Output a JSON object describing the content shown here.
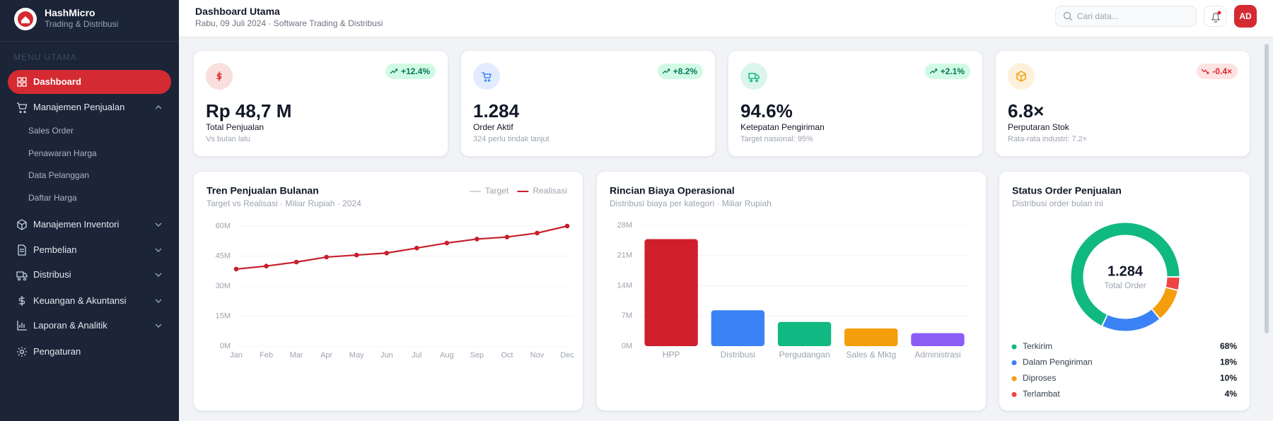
{
  "sidebar": {
    "brand": "HashMicro",
    "tagline": "Trading & Distribusi",
    "section": "MENU UTAMA",
    "menu": [
      {
        "label": "Dashboard",
        "active": true
      },
      {
        "label": "Manajemen Penjualan",
        "expanded": true,
        "children": [
          "Sales Order",
          "Penawaran Harga",
          "Data Pelanggan",
          "Daftar Harga"
        ]
      },
      {
        "label": "Manajemen Inventori",
        "expanded": false
      },
      {
        "label": "Pembelian",
        "expanded": false
      },
      {
        "label": "Distribusi",
        "expanded": false
      },
      {
        "label": "Keuangan & Akuntansi",
        "expanded": false
      },
      {
        "label": "Laporan & Analitik",
        "expanded": false
      },
      {
        "label": "Pengaturan"
      }
    ]
  },
  "header": {
    "title": "Dashboard Utama",
    "subtitle": "Rabu, 09 Juli 2024 · Software Trading & Distribusi",
    "search_placeholder": "Cari data...",
    "avatar": "AD"
  },
  "kpis": [
    {
      "value": "Rp 48,7 M",
      "label": "Total Penjualan",
      "note": "Vs bulan lalu",
      "change": "+12.4%",
      "trend": "up",
      "color": "#dc2626"
    },
    {
      "value": "1.284",
      "label": "Order Aktif",
      "note": "324 perlu tindak lanjut",
      "change": "+8.2%",
      "trend": "up",
      "color": "#3b82f6"
    },
    {
      "value": "94.6%",
      "label": "Ketepatan Pengiriman",
      "note": "Target nasional: 95%",
      "change": "+2.1%",
      "trend": "up",
      "color": "#10b981"
    },
    {
      "value": "6.8×",
      "label": "Perputaran Stok",
      "note": "Rata-rata industri: 7.2×",
      "change": "-0.4×",
      "trend": "down",
      "color": "#f59e0b"
    }
  ],
  "charts": [
    {
      "type": "line",
      "title": "Tren Penjualan Bulanan",
      "subtitle": "Target vs Realisasi · Miliar Rupiah · 2024",
      "categories": [
        "Jan",
        "Feb",
        "Mar",
        "Apr",
        "May",
        "Jun",
        "Jul",
        "Aug",
        "Sep",
        "Oct",
        "Nov",
        "Dec"
      ],
      "series": [
        {
          "name": "Target",
          "color": "#d1d5db",
          "values": [
            null,
            null,
            null,
            null,
            null,
            null,
            null,
            null,
            null,
            null,
            null,
            null
          ]
        },
        {
          "name": "Realisasi",
          "color": "#c81e2b",
          "values": [
            38.5,
            40,
            42,
            44.5,
            45.5,
            46.5,
            49,
            51.5,
            53.5,
            54.5,
            56.5,
            60
          ]
        }
      ],
      "ylim": [
        0,
        60
      ],
      "yticks": [
        {
          "value": 0,
          "label": "0M"
        },
        {
          "value": 15,
          "label": "15M"
        },
        {
          "value": 30,
          "label": "30M"
        },
        {
          "value": 45,
          "label": "45M"
        },
        {
          "value": 60,
          "label": "60M"
        }
      ],
      "grid": true,
      "legend": "top-right"
    },
    {
      "type": "bar",
      "title": "Rincian Biaya Operasional",
      "subtitle": "Distribusi biaya per kategori · Miliar Rupiah",
      "categories": [
        "HPP",
        "Distribusi",
        "Pergudangan",
        "Sales & Mktg",
        "Administrasi"
      ],
      "values": [
        24.8,
        8.3,
        5.6,
        4.1,
        3.0
      ],
      "colors": [
        "#cf1f2b",
        "#3b82f6",
        "#10b981",
        "#f59e0b",
        "#8b5cf6"
      ],
      "ylim": [
        0,
        28
      ],
      "yticks": [
        {
          "value": 0,
          "label": "0M"
        },
        {
          "value": 7,
          "label": "7M"
        },
        {
          "value": 14,
          "label": "14M"
        },
        {
          "value": 21,
          "label": "21M"
        },
        {
          "value": 28,
          "label": "28M"
        }
      ],
      "grid": true
    },
    {
      "type": "donut",
      "title": "Status Order Penjualan",
      "subtitle": "Distribusi order bulan ini",
      "center_value": "1.284",
      "center_label": "Total Order",
      "categories": [
        "Terkirim",
        "Dalam Pengiriman",
        "Diproses",
        "Terlambat"
      ],
      "values": [
        68,
        18,
        10,
        4
      ],
      "value_labels": [
        "68%",
        "18%",
        "10%",
        "4%"
      ],
      "colors": [
        "#10b981",
        "#3b82f6",
        "#f59e0b",
        "#ef4444"
      ]
    }
  ]
}
